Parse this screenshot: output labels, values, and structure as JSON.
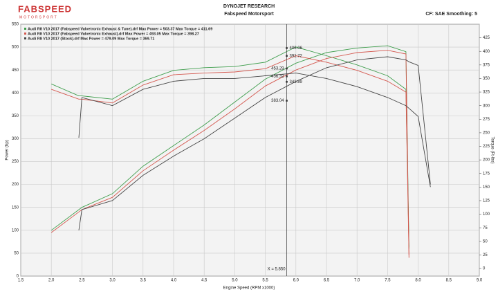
{
  "logo": {
    "brand": "FABSPEED",
    "sub": "MOTORSPORT"
  },
  "chart_data": {
    "type": "line",
    "title": "DYNOJET RESEARCH",
    "subtitle": "Fabspeed Motorsport",
    "settings_text": "CF: SAE  Smoothing: 5",
    "xlabel": "Engine Speed (RPM x1000)",
    "ylabel": "Power (hp)",
    "y2label": "Torque (Ft-lbs)",
    "xlim": [
      1.5,
      9.0
    ],
    "xticks": [
      1.5,
      {
        "value": 2,
        "label": "2.0"
      },
      2.5,
      {
        "value": 3,
        "label": "3.0"
      },
      3.5,
      {
        "value": 4,
        "label": "4.0"
      },
      4.5,
      {
        "value": 5,
        "label": "5.0"
      },
      5.5,
      {
        "value": 6,
        "label": "6.0"
      },
      6.5,
      {
        "value": 7,
        "label": "7.0"
      },
      7.5,
      {
        "value": 8,
        "label": "8.0"
      },
      8.5,
      {
        "value": 9,
        "label": "9.0"
      }
    ],
    "ylim": [
      0,
      550
    ],
    "yticks": [
      0,
      50,
      100,
      150,
      200,
      250,
      300,
      350,
      400,
      450,
      500,
      550
    ],
    "y2lim": [
      -14,
      450
    ],
    "y2ticks": [
      0,
      25,
      50,
      75,
      100,
      125,
      150,
      175,
      200,
      225,
      250,
      275,
      300,
      325,
      350,
      375,
      400,
      425
    ],
    "grid": true,
    "x": [
      2.0,
      2.45,
      2.5,
      3.0,
      3.5,
      4.0,
      4.5,
      5.0,
      5.5,
      6.0,
      6.5,
      7.0,
      7.5,
      7.8,
      7.85,
      8.0,
      8.2
    ],
    "series": [
      {
        "name": "Audi R8 V10 2017 (Fabspeed Valvetronic Exhaust & Tune).drf Max Power = 503.37    Max Torque = 411.69",
        "color": "#3f9e4d",
        "values": [
          100,
          145,
          150,
          180,
          240,
          285,
          330,
          380,
          430,
          465,
          488,
          498,
          503,
          490,
          60,
          null,
          null
        ],
        "torque": [
          340,
          318,
          318,
          312,
          345,
          365,
          370,
          372,
          380,
          408,
          392,
          375,
          355,
          330,
          40,
          null,
          null
        ]
      },
      {
        "name": "Audi R8 V10 2017 (Fabspeed Valvetronic Exhaust).drf Max Power = 493.05    Max Torque = 398.27",
        "color": "#d4574e",
        "values": [
          95,
          140,
          145,
          172,
          230,
          275,
          318,
          365,
          415,
          450,
          475,
          488,
          493,
          485,
          40,
          null,
          null
        ],
        "torque": [
          330,
          312,
          312,
          305,
          338,
          357,
          360,
          362,
          368,
          392,
          380,
          365,
          345,
          325,
          25,
          null,
          null
        ]
      },
      {
        "name": "Audi R8 V10 2017 (Stock).drf Max Power = 479.09    Max Torque = 369.71",
        "color": "#444444",
        "values": [
          null,
          100,
          145,
          165,
          220,
          262,
          300,
          345,
          390,
          425,
          455,
          472,
          479,
          472,
          468,
          460,
          200
        ],
        "torque": [
          null,
          241,
          315,
          300,
          330,
          345,
          350,
          350,
          355,
          360,
          350,
          335,
          315,
          300,
          295,
          280,
          150
        ]
      }
    ],
    "cursor": {
      "x": 5.85,
      "label": "X = 5.850"
    },
    "annotations": [
      {
        "x": 5.85,
        "value": 406.06,
        "axis": "y2"
      },
      {
        "x": 5.85,
        "value": 391.72,
        "axis": "y2"
      },
      {
        "x": 5.85,
        "value": 453.29,
        "axis": "y"
      },
      {
        "x": 5.85,
        "value": 436.32,
        "axis": "y"
      },
      {
        "x": 5.85,
        "value": 343.89,
        "axis": "y2"
      },
      {
        "x": 5.85,
        "value": 383.04,
        "axis": "y"
      }
    ]
  }
}
